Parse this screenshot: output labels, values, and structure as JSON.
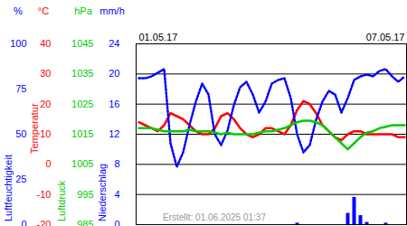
{
  "chart_data": [
    {
      "type": "line",
      "ylabel": "Luftfeuchtigkeit",
      "yunit": "%",
      "color": "#0000ff",
      "line_style": "dotted",
      "grid": false,
      "caption": "Erstellt: 01.06.2025 01:37",
      "categories": [
        "01.05.17",
        null,
        null,
        null,
        null,
        null,
        null,
        null,
        null,
        null,
        null,
        null,
        null,
        null,
        null,
        null,
        null,
        null,
        null,
        null,
        null,
        null,
        null,
        null,
        null,
        null,
        null,
        null,
        null,
        null,
        null,
        null,
        null,
        null,
        null,
        null,
        null,
        null,
        null,
        null,
        null,
        null,
        "07.05.17"
      ],
      "ylim": [
        0,
        100
      ],
      "yticks": [
        0,
        25,
        50,
        75,
        100
      ],
      "values": [
        81,
        81,
        82,
        84,
        86,
        45,
        32,
        40,
        55,
        68,
        78,
        72,
        50,
        44,
        52,
        66,
        76,
        79,
        72,
        62,
        68,
        78,
        80,
        81,
        70,
        50,
        40,
        44,
        58,
        68,
        74,
        72,
        62,
        70,
        80,
        82,
        83,
        82,
        85,
        86,
        82,
        79,
        82
      ]
    },
    {
      "type": "line",
      "ylabel": "Temperatur",
      "yunit": "°C",
      "color": "#ff0000",
      "line_style": "solid",
      "grid": true,
      "categories": [
        null,
        null,
        null,
        null,
        null,
        null,
        null,
        null,
        null,
        null,
        null,
        null,
        null,
        null,
        null,
        null,
        null,
        null,
        null,
        null,
        null,
        null,
        null,
        null,
        null,
        null,
        null,
        null,
        null,
        null,
        null,
        null,
        null,
        null,
        null,
        null,
        null,
        null,
        null,
        null,
        null,
        null,
        null
      ],
      "ylim": [
        -20,
        40
      ],
      "yticks": [
        -20,
        -10,
        0,
        10,
        20,
        30,
        40
      ],
      "values": [
        14,
        13,
        12,
        11,
        13,
        17,
        16,
        15,
        13,
        11,
        10,
        10,
        12,
        16,
        17,
        15,
        12,
        10,
        9,
        10,
        12,
        12,
        11,
        10,
        13,
        18,
        21,
        20,
        17,
        13,
        11,
        9,
        8,
        10,
        11,
        11,
        10,
        10,
        10,
        10,
        10,
        9,
        9
      ]
    },
    {
      "type": "line",
      "ylabel": "Luftdruck",
      "yunit": "hPa",
      "color": "#00cc00",
      "line_style": "solid",
      "grid": false,
      "categories": [
        null,
        null,
        null,
        null,
        null,
        null,
        null,
        null,
        null,
        null,
        null,
        null,
        null,
        null,
        null,
        null,
        null,
        null,
        null,
        null,
        null,
        null,
        null,
        null,
        null,
        null,
        null,
        null,
        null,
        null,
        null,
        null,
        null,
        null,
        null,
        null,
        null,
        null,
        null,
        null,
        null,
        null,
        null
      ],
      "ylim": [
        985,
        1045
      ],
      "yticks": [
        985,
        995,
        1005,
        1015,
        1025,
        1035,
        1045
      ],
      "values": [
        1017,
        1017,
        1017,
        1016.5,
        1016,
        1016,
        1016,
        1016,
        1016.5,
        1016,
        1016,
        1016,
        1015.5,
        1015,
        1015.5,
        1015,
        1015,
        1015,
        1015,
        1015.5,
        1016,
        1016,
        1016.5,
        1017,
        1018,
        1019,
        1019.5,
        1019.5,
        1019,
        1018,
        1016,
        1014,
        1012,
        1010,
        1012,
        1014,
        1015.5,
        1016,
        1017,
        1017.5,
        1018,
        1018,
        1018
      ]
    },
    {
      "type": "bar",
      "ylabel": "Niederschlag",
      "yunit": "mm/h",
      "color": "#0000ff",
      "grid": false,
      "categories": [
        null,
        null,
        null,
        null,
        null,
        null,
        null,
        null,
        null,
        null,
        null,
        null,
        null,
        null,
        null,
        null,
        null,
        null,
        null,
        null,
        null,
        null,
        null,
        null,
        null,
        null,
        null,
        null,
        null,
        null,
        null,
        null,
        null,
        null,
        null,
        null,
        null,
        null,
        null,
        null,
        null,
        null,
        null
      ],
      "ylim": [
        0,
        24
      ],
      "yticks": [
        0,
        4,
        8,
        12,
        16,
        20,
        24
      ],
      "values": [
        0,
        0,
        0,
        0,
        0,
        0,
        0,
        0,
        0,
        0,
        0,
        0,
        0,
        0,
        0,
        0,
        0,
        0,
        0,
        0,
        0,
        0,
        0,
        0,
        0,
        0.2,
        0,
        0,
        0,
        0,
        0,
        0,
        0,
        1.5,
        3.6,
        1.2,
        0.3,
        0,
        0,
        0.2,
        0,
        0,
        0
      ]
    }
  ]
}
